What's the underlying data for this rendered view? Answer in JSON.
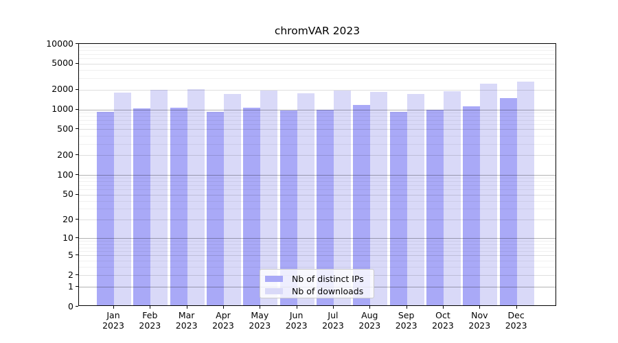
{
  "title": "chromVAR 2023",
  "chart_data": {
    "type": "bar",
    "title": "chromVAR 2023",
    "categories": [
      "Jan 2023",
      "Feb 2023",
      "Mar 2023",
      "Apr 2023",
      "May 2023",
      "Jun 2023",
      "Jul 2023",
      "Aug 2023",
      "Sep 2023",
      "Oct 2023",
      "Nov 2023",
      "Dec 2023"
    ],
    "series": [
      {
        "name": "Nb of distinct IPs",
        "color": "#a9a9f7",
        "values": [
          930,
          1040,
          1065,
          925,
          1060,
          965,
          1000,
          1175,
          930,
          985,
          1130,
          1480
        ]
      },
      {
        "name": "Nb of downloads",
        "color": "#d9d9f8",
        "values": [
          1820,
          1975,
          2050,
          1730,
          1945,
          1780,
          1960,
          1855,
          1735,
          1885,
          2455,
          2665
        ]
      }
    ],
    "y_ticks": [
      0,
      1,
      2,
      5,
      10,
      20,
      50,
      100,
      200,
      500,
      1000,
      2000,
      5000,
      10000
    ],
    "ylim": [
      0,
      10000
    ],
    "y_scale": "log(value+1)",
    "grid": "horizontal major and minor",
    "legend_position": "lower center inside plot"
  },
  "colors": {
    "ips_bar": "#a9a9f7",
    "downloads_bar": "#d9d9f8",
    "grid_major": "rgba(0,0,0,0.30)",
    "grid_mid": "rgba(0,0,0,0.13)",
    "grid_minor": "rgba(0,0,0,0.06)",
    "spine": "#000000",
    "background": "#ffffff"
  }
}
